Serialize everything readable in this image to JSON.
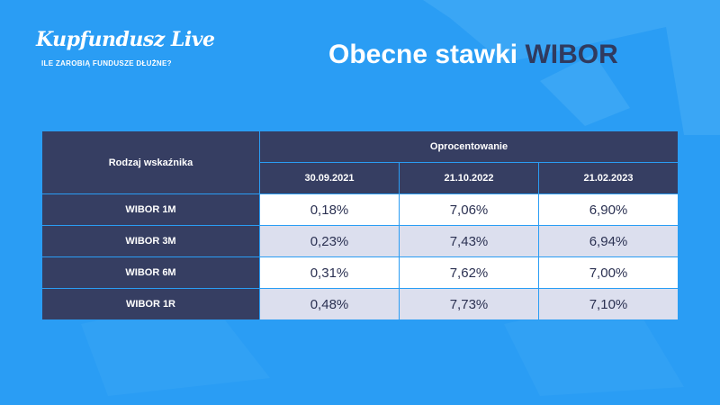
{
  "brand": {
    "logo_text": "Kupfundusz Live",
    "tagline": "ILE ZAROBIĄ FUNDUSZE DŁUŻNE?"
  },
  "title": {
    "main": "Obecne stawki",
    "accent": "WIBOR"
  },
  "table": {
    "row_header": "Rodzaj wskaźnika",
    "group_header": "Oprocentowanie",
    "dates": [
      "30.09.2021",
      "21.10.2022",
      "21.02.2023"
    ],
    "rows": [
      {
        "label": "WIBOR 1M",
        "values": [
          "0,18%",
          "7,06%",
          "6,90%"
        ]
      },
      {
        "label": "WIBOR 3M",
        "values": [
          "0,23%",
          "7,43%",
          "6,94%"
        ]
      },
      {
        "label": "WIBOR 6M",
        "values": [
          "0,31%",
          "7,62%",
          "7,00%"
        ]
      },
      {
        "label": "WIBOR 1R",
        "values": [
          "0,48%",
          "7,73%",
          "7,10%"
        ]
      }
    ]
  },
  "colors": {
    "background": "#2a9df4",
    "table_header": "#363e62",
    "accent_text": "#303a5e",
    "row_alt": "#dcdfee"
  }
}
